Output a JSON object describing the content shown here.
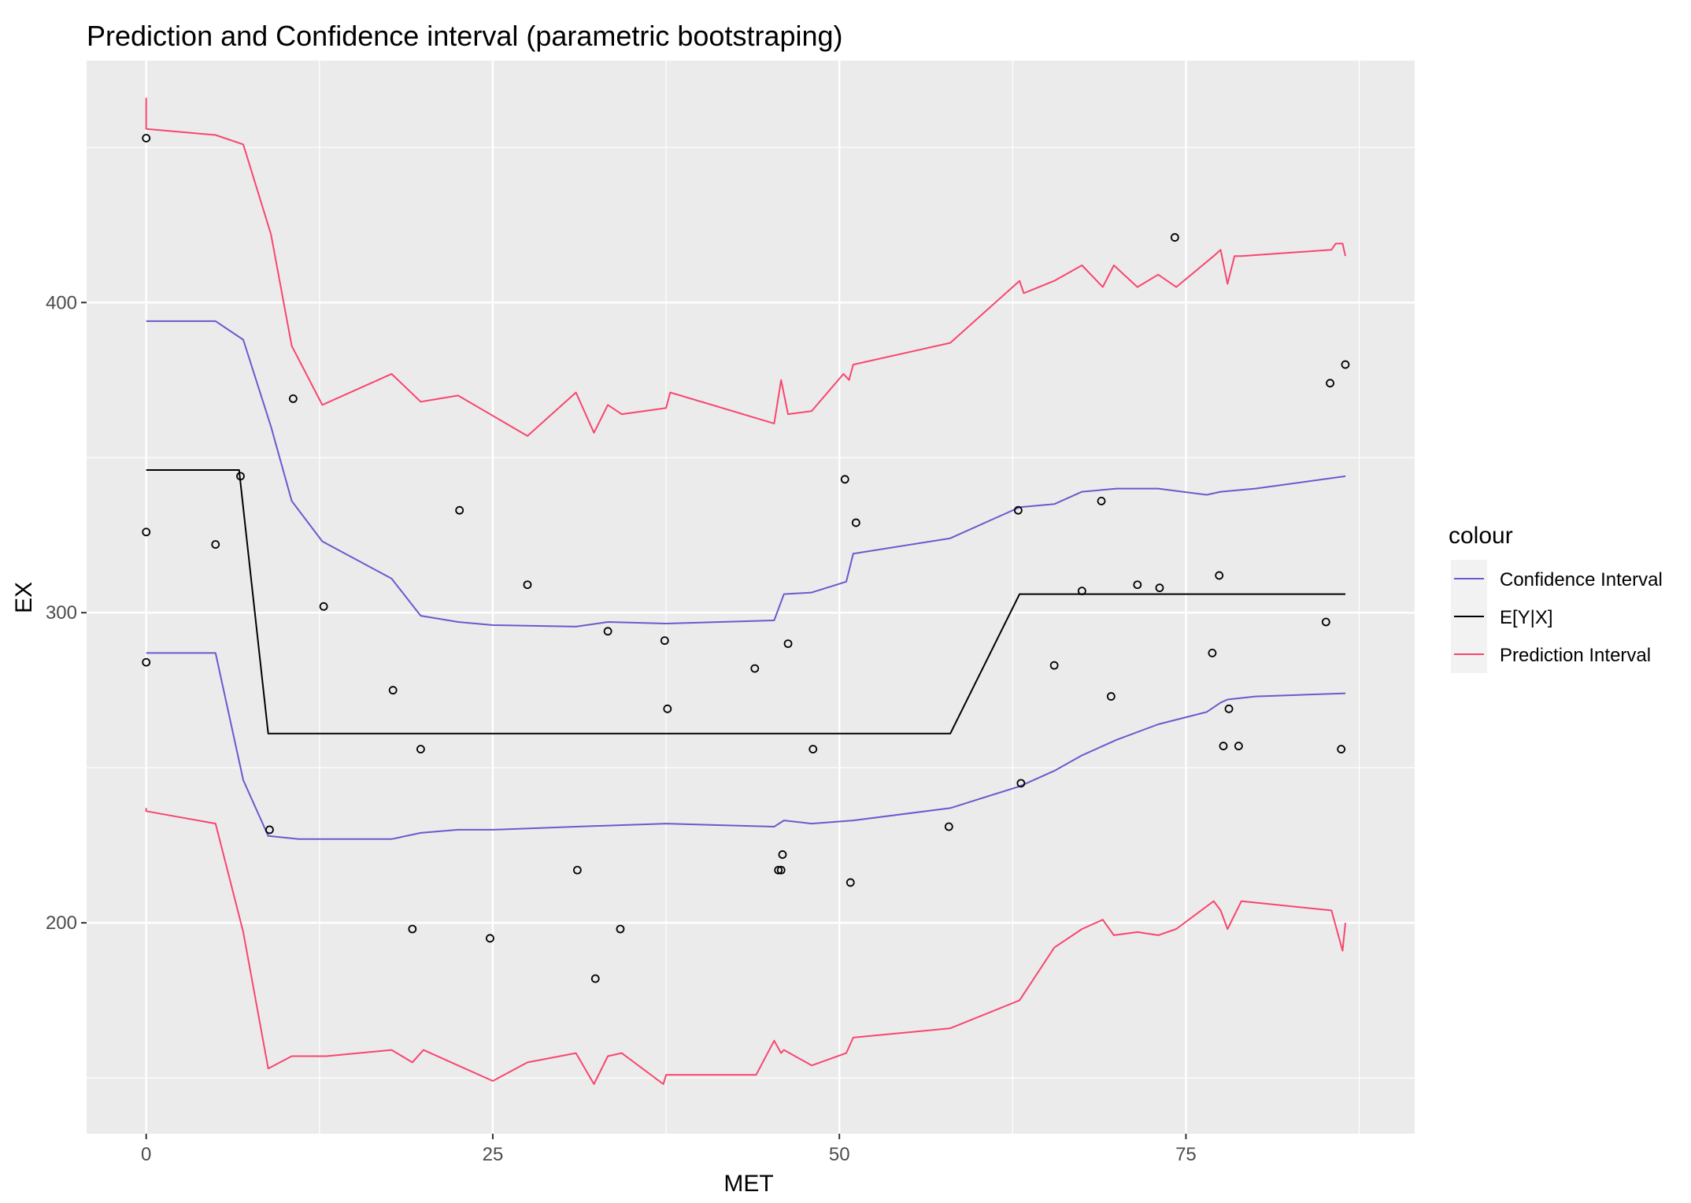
{
  "chart_data": {
    "type": "line",
    "title": "Prediction and Confidence interval (parametric bootstraping)",
    "xlabel": "MET",
    "ylabel": "EX",
    "xlim": [
      -4.3,
      91.5
    ],
    "ylim": [
      132,
      478
    ],
    "x_ticks": [
      0,
      25,
      50,
      75
    ],
    "y_ticks": [
      200,
      300,
      400
    ],
    "y_minor_ticks": [
      150,
      250,
      350,
      450
    ],
    "x_minor_ticks": [
      12.5,
      37.5,
      62.5,
      87.5
    ],
    "grid": true,
    "panel_background": "#EBEBEB",
    "grid_color": "#FFFFFF",
    "legend": {
      "title": "colour",
      "position": "right",
      "entries": [
        {
          "label": "Confidence Interval",
          "color": "#6A5ACD"
        },
        {
          "label": "E[Y|X]",
          "color": "#000000"
        },
        {
          "label": "Prediction Interval",
          "color": "#F8466E"
        }
      ]
    },
    "series": [
      {
        "key": "pi_upper",
        "legend_index": 2,
        "color": "#F8466E",
        "x": [
          0,
          0,
          5,
          7,
          9,
          10.5,
          12.7,
          17.7,
          19.8,
          22.5,
          27.5,
          31,
          32.3,
          33.3,
          34.3,
          37.5,
          37.8,
          45.3,
          45.8,
          46.3,
          48,
          50.3,
          50.7,
          51,
          58,
          63,
          63.3,
          65.5,
          67.5,
          69,
          69.8,
          71.5,
          73,
          74.3,
          77,
          77.5,
          78,
          78.5,
          79,
          85.5,
          85.8,
          86.3,
          86.5
        ],
        "y": [
          466,
          456,
          454,
          451,
          422,
          386,
          367,
          377,
          368,
          370,
          357,
          371,
          358,
          367,
          364,
          366,
          371,
          361,
          375,
          364,
          365,
          377,
          375,
          380,
          387,
          407,
          403,
          407,
          412,
          405,
          412,
          405,
          409,
          405,
          415,
          417,
          406,
          415,
          415,
          417,
          419,
          419,
          415
        ]
      },
      {
        "key": "ci_upper",
        "legend_index": 0,
        "color": "#6A5ACD",
        "x": [
          0,
          5,
          7,
          9,
          10.5,
          12.7,
          17.7,
          19.8,
          22.5,
          25,
          31,
          33.3,
          37.5,
          45.3,
          46,
          48,
          50.5,
          51,
          58,
          63,
          65.5,
          67.5,
          70,
          73,
          76.5,
          77.5,
          80,
          86.5
        ],
        "y": [
          394,
          394,
          388,
          360,
          336,
          323,
          311,
          299,
          297,
          296,
          295.5,
          297,
          296.5,
          297.5,
          306,
          306.5,
          310,
          319,
          324,
          334,
          335,
          339,
          340,
          340,
          338,
          339,
          340,
          344
        ]
      },
      {
        "key": "mean",
        "legend_index": 1,
        "color": "#000000",
        "x": [
          0,
          6.7,
          8.8,
          58,
          63,
          86.5
        ],
        "y": [
          346,
          346,
          261,
          261,
          306,
          306
        ]
      },
      {
        "key": "ci_lower",
        "legend_index": 0,
        "color": "#6A5ACD",
        "x": [
          0,
          5,
          7,
          8.8,
          11,
          17.7,
          19.8,
          22.5,
          25,
          31,
          37.5,
          45.3,
          46,
          48,
          51,
          58,
          63,
          65.5,
          67.5,
          70,
          73,
          76.5,
          77.5,
          78,
          80,
          86.5
        ],
        "y": [
          287,
          287,
          246,
          228,
          227,
          227,
          229,
          230,
          230,
          231,
          232,
          231,
          233,
          232,
          233,
          237,
          244,
          249,
          254,
          259,
          264,
          268,
          271,
          272,
          273,
          274
        ]
      },
      {
        "key": "pi_lower",
        "legend_index": 2,
        "color": "#F8466E",
        "x": [
          0,
          0,
          5,
          7,
          8.8,
          10.5,
          13,
          17.7,
          19.2,
          20,
          22.5,
          25,
          27.5,
          31,
          32.3,
          33.3,
          34.3,
          37.3,
          37.5,
          44,
          45.3,
          45.8,
          46,
          48,
          50.5,
          51,
          58,
          63,
          65.5,
          67.5,
          69,
          69.8,
          71.5,
          73,
          74.3,
          77,
          77.5,
          78,
          79,
          85.5,
          86.3,
          86.5
        ],
        "y": [
          237,
          236,
          232,
          197,
          153,
          157,
          157,
          159,
          155,
          159,
          154,
          149,
          155,
          158,
          148,
          157,
          158,
          148,
          151,
          151,
          162,
          158,
          159,
          154,
          158,
          163,
          166,
          175,
          192,
          198,
          201,
          196,
          197,
          196,
          198,
          207,
          204,
          198,
          207,
          204,
          191,
          200
        ]
      }
    ],
    "points": {
      "x": [
        0,
        0,
        0,
        5,
        6.8,
        8.9,
        10.6,
        12.8,
        17.8,
        19.2,
        19.8,
        22.6,
        24.8,
        27.5,
        31.1,
        32.4,
        33.3,
        34.2,
        37.4,
        37.6,
        43.9,
        45.6,
        45.8,
        45.9,
        46.3,
        48.1,
        50.4,
        50.8,
        51.2,
        57.9,
        62.9,
        63.1,
        65.5,
        67.5,
        68.9,
        69.6,
        71.5,
        73.1,
        74.2,
        76.9,
        77.4,
        77.7,
        78.1,
        78.8,
        85.1,
        85.4,
        86.2,
        86.5
      ],
      "y": [
        453,
        326,
        284,
        322,
        344,
        230,
        369,
        302,
        275,
        198,
        256,
        333,
        195,
        309,
        217,
        182,
        294,
        198,
        291,
        269,
        282,
        217,
        217,
        222,
        290,
        256,
        343,
        213,
        329,
        231,
        333,
        245,
        283,
        307,
        336,
        273,
        309,
        308,
        421,
        287,
        312,
        257,
        269,
        257,
        297,
        374,
        256,
        380
      ]
    }
  }
}
